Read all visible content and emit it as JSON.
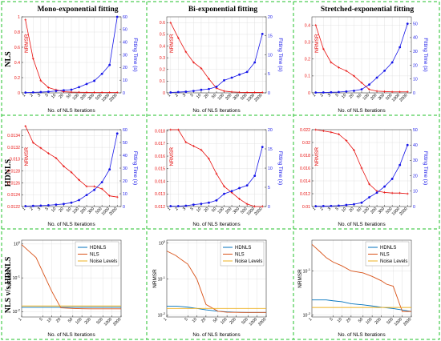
{
  "column_titles": [
    "Mono-exponential fitting",
    "Bi-exponential fitting",
    "Stretched-exponential fitting"
  ],
  "row_labels": [
    "NLS",
    "HDNLS",
    "NLS v/s HDNLS"
  ],
  "colors": {
    "red": "#e8110f",
    "blue": "#1515e8",
    "hdnls": "#0072bd",
    "nls": "#d95319",
    "noise": "#edb120",
    "separator": "#22c02a"
  },
  "chart_data": [
    {
      "type": "line",
      "row": 0,
      "col": 0,
      "dual_axis": true,
      "x": [
        1,
        2,
        3,
        5,
        10,
        20,
        50,
        100,
        200,
        300,
        500,
        1000,
        2000
      ],
      "xlabel": "No. of NLS Iterations",
      "ylabel_left": "NRMSR",
      "ylabel_right": "Fitting Time (s)",
      "ylim_left": [
        0,
        1
      ],
      "yticks_left": [
        0,
        0.2,
        0.4,
        0.6,
        0.8,
        1
      ],
      "ylim_right": [
        0,
        60
      ],
      "yticks_right": [
        0,
        10,
        20,
        30,
        40,
        50,
        60
      ],
      "series": [
        {
          "axis": "left",
          "color": "#e8110f",
          "values": [
            0.96,
            0.45,
            0.16,
            0.07,
            0.04,
            0.015,
            0.01,
            0.008,
            0.006,
            0.005,
            0.005,
            0.005,
            0.005
          ]
        },
        {
          "axis": "right",
          "color": "#1515e8",
          "values": [
            0.2,
            0.4,
            0.6,
            0.9,
            1.5,
            2,
            2.5,
            4.5,
            7,
            9.5,
            15,
            22,
            60
          ]
        }
      ]
    },
    {
      "type": "line",
      "row": 0,
      "col": 1,
      "dual_axis": true,
      "x": [
        1,
        2,
        3,
        5,
        10,
        20,
        50,
        100,
        200,
        300,
        500,
        1000,
        2000
      ],
      "xlabel": "No. of NLS Iterations",
      "ylabel_left": "NRMSR",
      "ylabel_right": "Fitting Time (s)",
      "ylim_left": [
        0,
        0.65
      ],
      "yticks_left": [
        0,
        0.1,
        0.2,
        0.3,
        0.4,
        0.5,
        0.6
      ],
      "ylim_right": [
        0,
        20
      ],
      "yticks_right": [
        0,
        5,
        10,
        15,
        20
      ],
      "series": [
        {
          "axis": "left",
          "color": "#e8110f",
          "values": [
            0.6,
            0.47,
            0.35,
            0.26,
            0.21,
            0.12,
            0.04,
            0.015,
            0.008,
            0.005,
            0.004,
            0.004,
            0.004
          ]
        },
        {
          "axis": "right",
          "color": "#1515e8",
          "values": [
            0.1,
            0.2,
            0.3,
            0.5,
            0.8,
            1,
            1.6,
            3.3,
            4,
            4.8,
            5.5,
            8,
            15.5
          ]
        }
      ]
    },
    {
      "type": "line",
      "row": 0,
      "col": 2,
      "dual_axis": true,
      "x": [
        1,
        2,
        3,
        5,
        10,
        20,
        50,
        100,
        200,
        300,
        500,
        1000,
        2000
      ],
      "xlabel": "No. of NLS Iterations",
      "ylabel_left": "NRMSR",
      "ylabel_right": "Fitting Time (s)",
      "ylim_left": [
        0,
        0.45
      ],
      "yticks_left": [
        0,
        0.1,
        0.2,
        0.3,
        0.4
      ],
      "ylim_right": [
        0,
        55
      ],
      "yticks_right": [
        0,
        10,
        20,
        30,
        40,
        50
      ],
      "series": [
        {
          "axis": "left",
          "color": "#e8110f",
          "values": [
            0.4,
            0.26,
            0.18,
            0.15,
            0.13,
            0.1,
            0.06,
            0.02,
            0.01,
            0.008,
            0.006,
            0.006,
            0.006
          ]
        },
        {
          "axis": "right",
          "color": "#1515e8",
          "values": [
            0.2,
            0.3,
            0.4,
            0.6,
            1,
            1.5,
            2.5,
            6,
            11,
            16,
            22,
            33,
            50
          ]
        }
      ]
    },
    {
      "type": "line",
      "row": 1,
      "col": 0,
      "dual_axis": true,
      "x": [
        1,
        2,
        3,
        5,
        10,
        20,
        50,
        100,
        200,
        300,
        500,
        1000,
        2000
      ],
      "xlabel": "No. of NLS Iterations",
      "ylabel_left": "NRMSR",
      "ylabel_right": "Fitting Time (s)",
      "ylim_left": [
        0.0122,
        0.0135
      ],
      "yticks_left": [
        0.0122,
        0.0124,
        0.0126,
        0.0128,
        0.013,
        0.0132,
        0.0134
      ],
      "ytick_labels_left": [
        "0.0122",
        "0.0124",
        "0.0126",
        "0.0128",
        "0.013",
        "0.0132",
        "0.0134"
      ],
      "ylim_right": [
        0,
        60
      ],
      "yticks_right": [
        0,
        10,
        20,
        30,
        40,
        50,
        60
      ],
      "series": [
        {
          "axis": "left",
          "color": "#e8110f",
          "values": [
            0.01356,
            0.01328,
            0.01319,
            0.0131,
            0.01302,
            0.01288,
            0.01278,
            0.01265,
            0.01254,
            0.01254,
            0.0125,
            0.01238,
            0.01236
          ]
        },
        {
          "axis": "right",
          "color": "#1515e8",
          "values": [
            0.3,
            0.5,
            0.7,
            1,
            1.5,
            2,
            3,
            5,
            9,
            13,
            19,
            29,
            57
          ]
        }
      ]
    },
    {
      "type": "line",
      "row": 1,
      "col": 1,
      "dual_axis": true,
      "x": [
        1,
        2,
        3,
        5,
        10,
        20,
        50,
        100,
        200,
        300,
        500,
        1000,
        2000
      ],
      "xlabel": "No. of NLS Iterations",
      "ylabel_left": "NRMSR",
      "ylabel_right": "Fitting Time (s)",
      "ylim_left": [
        0.012,
        0.0181
      ],
      "yticks_left": [
        0.012,
        0.013,
        0.014,
        0.015,
        0.016,
        0.017,
        0.018
      ],
      "ytick_labels_left": [
        "0.012",
        "0.013",
        "0.014",
        "0.015",
        "0.016",
        "0.017",
        "0.018"
      ],
      "ylim_right": [
        0,
        20
      ],
      "yticks_right": [
        0,
        5,
        10,
        15,
        20
      ],
      "series": [
        {
          "axis": "left",
          "color": "#e8110f",
          "values": [
            0.0181,
            0.0181,
            0.0171,
            0.0168,
            0.0165,
            0.0158,
            0.0146,
            0.0136,
            0.0131,
            0.0126,
            0.0122,
            0.012,
            0.012
          ]
        },
        {
          "axis": "right",
          "color": "#1515e8",
          "values": [
            0.1,
            0.1,
            0.2,
            0.5,
            0.7,
            1,
            1.6,
            3.3,
            4,
            4.8,
            5.5,
            8,
            15.5
          ]
        }
      ]
    },
    {
      "type": "line",
      "row": 1,
      "col": 2,
      "dual_axis": true,
      "x": [
        1,
        2,
        3,
        5,
        10,
        20,
        50,
        100,
        200,
        300,
        500,
        1000,
        2000
      ],
      "xlabel": "No. of NLS Iterations",
      "ylabel_left": "NRMSR",
      "ylabel_right": "Fitting Time (s)",
      "ylim_left": [
        0.01,
        0.022
      ],
      "yticks_left": [
        0.01,
        0.012,
        0.014,
        0.016,
        0.018,
        0.02,
        0.022
      ],
      "ytick_labels_left": [
        "0.01",
        "0.012",
        "0.014",
        "0.016",
        "0.018",
        "0.02",
        "0.022"
      ],
      "ylim_right": [
        0,
        50
      ],
      "yticks_right": [
        0,
        10,
        20,
        30,
        40,
        50
      ],
      "series": [
        {
          "axis": "left",
          "color": "#e8110f",
          "values": [
            0.022,
            0.0218,
            0.0216,
            0.0213,
            0.0203,
            0.0188,
            0.016,
            0.0135,
            0.0124,
            0.0122,
            0.0121,
            0.0121,
            0.012
          ]
        },
        {
          "axis": "right",
          "color": "#1515e8",
          "values": [
            0.2,
            0.3,
            0.4,
            0.6,
            1,
            1.5,
            2.5,
            6,
            9,
            13,
            18,
            27,
            40
          ]
        }
      ]
    },
    {
      "type": "line",
      "row": 2,
      "col": 0,
      "log_y": true,
      "x": [
        1,
        2,
        3,
        5,
        10,
        20,
        50,
        100,
        200,
        300,
        500,
        1000,
        2000
      ],
      "xticks": [
        1,
        5,
        10,
        20,
        50,
        100,
        200,
        500,
        1000,
        2000
      ],
      "xlabel": "No. of NLS Iterations",
      "ylabel": "NRMSR",
      "ylim": [
        0.007,
        1.3
      ],
      "yticks": [
        0.01,
        0.1,
        1
      ],
      "ytick_labels": [
        "10^-2",
        "10^-1",
        "10^0"
      ],
      "legend": "top-right",
      "series": [
        {
          "name": "HDNLS",
          "color": "#0072bd",
          "values": [
            0.0135,
            0.0135,
            0.0135,
            0.0135,
            0.0135,
            0.0135,
            0.0135,
            0.0135,
            0.0135,
            0.0135,
            0.0135,
            0.0135,
            0.0135
          ]
        },
        {
          "name": "NLS",
          "color": "#d95319",
          "values": [
            0.96,
            0.55,
            0.4,
            0.15,
            0.04,
            0.013,
            0.0125,
            0.0123,
            0.0122,
            0.0122,
            0.0122,
            0.0122,
            0.0122
          ]
        },
        {
          "name": "Noise Levels",
          "color": "#edb120",
          "values": [
            0.0148,
            0.0148,
            0.0148,
            0.0148,
            0.0148,
            0.0148,
            0.0148,
            0.0148,
            0.0148,
            0.0148,
            0.0148,
            0.0148,
            0.0148
          ]
        }
      ]
    },
    {
      "type": "line",
      "row": 2,
      "col": 1,
      "log_y": true,
      "x": [
        1,
        2,
        3,
        5,
        10,
        20,
        50,
        100,
        200,
        300,
        500,
        1000,
        2000
      ],
      "xticks": [
        1,
        5,
        10,
        20,
        50,
        100,
        200,
        500,
        1000,
        2000
      ],
      "xlabel": "No. of NLS Iterations",
      "ylabel": "NRMSR",
      "ylim": [
        0.009,
        1.2
      ],
      "yticks": [
        0.01,
        0.1,
        1
      ],
      "ytick_labels": [
        "10^-2",
        "10^-1",
        "10^0"
      ],
      "legend": "top-right",
      "series": [
        {
          "name": "HDNLS",
          "color": "#0072bd",
          "values": [
            0.018,
            0.018,
            0.0175,
            0.0168,
            0.0155,
            0.0142,
            0.013,
            0.0125,
            0.0122,
            0.0121,
            0.012,
            0.012,
            0.012
          ]
        },
        {
          "name": "NLS",
          "color": "#d95319",
          "values": [
            0.6,
            0.45,
            0.35,
            0.26,
            0.1,
            0.02,
            0.013,
            0.0122,
            0.0121,
            0.012,
            0.012,
            0.012,
            0.012
          ]
        },
        {
          "name": "Noise Levels",
          "color": "#edb120",
          "values": [
            0.0155,
            0.0155,
            0.0155,
            0.0155,
            0.0155,
            0.0155,
            0.0155,
            0.0155,
            0.0155,
            0.0155,
            0.0155,
            0.0155,
            0.0155
          ]
        }
      ]
    },
    {
      "type": "line",
      "row": 2,
      "col": 2,
      "log_y": true,
      "x": [
        1,
        2,
        3,
        5,
        10,
        20,
        50,
        100,
        200,
        300,
        500,
        1000,
        2000
      ],
      "xticks": [
        1,
        5,
        10,
        20,
        50,
        100,
        200,
        500,
        1000,
        2000
      ],
      "xlabel": "No. of NLS Iterations",
      "ylabel": "NRMSR",
      "ylim": [
        0.009,
        0.5
      ],
      "yticks": [
        0.01,
        0.1
      ],
      "ytick_labels": [
        "10^-2",
        "10^-1"
      ],
      "legend": "top-right",
      "series": [
        {
          "name": "HDNLS",
          "color": "#0072bd",
          "values": [
            0.022,
            0.022,
            0.022,
            0.021,
            0.02,
            0.018,
            0.017,
            0.016,
            0.015,
            0.0145,
            0.014,
            0.013,
            0.012
          ]
        },
        {
          "name": "NLS",
          "color": "#d95319",
          "values": [
            0.4,
            0.26,
            0.2,
            0.16,
            0.13,
            0.1,
            0.09,
            0.075,
            0.06,
            0.05,
            0.045,
            0.012,
            0.012
          ]
        },
        {
          "name": "Noise Levels",
          "color": "#edb120",
          "values": [
            0.0148,
            0.0148,
            0.0148,
            0.0148,
            0.0148,
            0.0148,
            0.0148,
            0.0148,
            0.0148,
            0.0148,
            0.0148,
            0.0148,
            0.0148
          ]
        }
      ]
    }
  ]
}
